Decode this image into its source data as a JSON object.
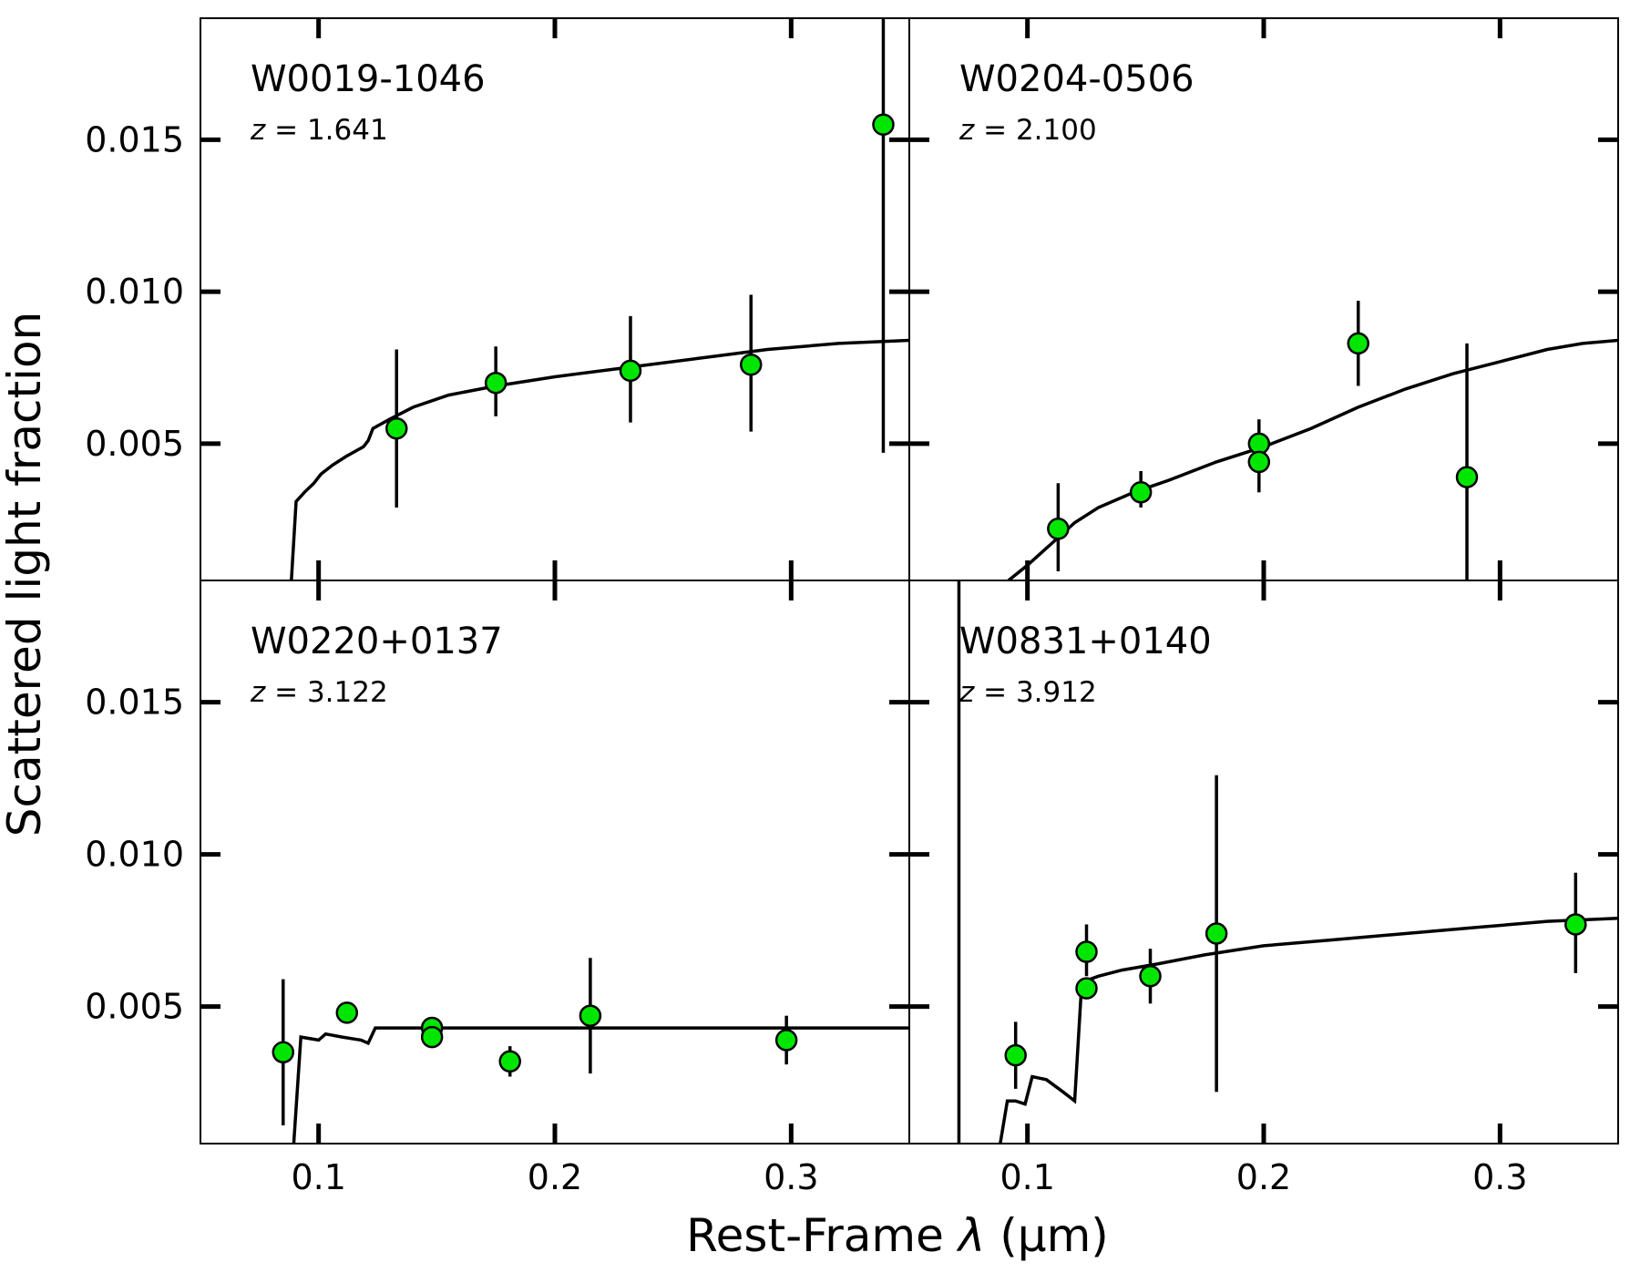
{
  "figure": {
    "xlabel_prefix": "Rest-Frame ",
    "xlabel_symbol": "λ",
    "xlabel_unit": " (μm)",
    "ylabel": "Scattered light fraction",
    "colors": {
      "marker_fill": "#00e600",
      "marker_edge": "#000000",
      "line": "#000000",
      "frame": "#000000"
    }
  },
  "chart_data": [
    {
      "type": "scatter",
      "name": "W0019-1046",
      "redshift_label": "z = 1.641",
      "xlim": [
        0.05,
        0.35
      ],
      "ylim": [
        0.0005,
        0.019
      ],
      "xticks": [
        0.1,
        0.2,
        0.3
      ],
      "yticks": [
        0.005,
        0.01,
        0.015
      ],
      "points": [
        {
          "x": 0.133,
          "y": 0.0055,
          "yerr_low": 0.0029,
          "yerr_high": 0.0081
        },
        {
          "x": 0.175,
          "y": 0.007,
          "yerr_low": 0.0059,
          "yerr_high": 0.0082
        },
        {
          "x": 0.232,
          "y": 0.0074,
          "yerr_low": 0.0057,
          "yerr_high": 0.0092
        },
        {
          "x": 0.283,
          "y": 0.0076,
          "yerr_low": 0.0054,
          "yerr_high": 0.0099
        },
        {
          "x": 0.339,
          "y": 0.0155,
          "yerr_low": 0.0047,
          "yerr_high": 0.0192
        }
      ],
      "model": [
        [
          0.0885,
          0.0005
        ],
        [
          0.0905,
          0.0031
        ],
        [
          0.094,
          0.0034
        ],
        [
          0.098,
          0.0037
        ],
        [
          0.101,
          0.004
        ],
        [
          0.106,
          0.0043
        ],
        [
          0.112,
          0.0046
        ],
        [
          0.119,
          0.0049
        ],
        [
          0.121,
          0.0051
        ],
        [
          0.123,
          0.0055
        ],
        [
          0.13,
          0.0058
        ],
        [
          0.14,
          0.0062
        ],
        [
          0.155,
          0.0066
        ],
        [
          0.175,
          0.0069
        ],
        [
          0.2,
          0.0072
        ],
        [
          0.23,
          0.0075
        ],
        [
          0.26,
          0.0078
        ],
        [
          0.29,
          0.0081
        ],
        [
          0.32,
          0.0083
        ],
        [
          0.35,
          0.0084
        ]
      ]
    },
    {
      "type": "scatter",
      "name": "W0204-0506",
      "redshift_label": "z = 2.100",
      "xlim": [
        0.05,
        0.35
      ],
      "ylim": [
        0.0005,
        0.019
      ],
      "xticks": [
        0.1,
        0.2,
        0.3
      ],
      "yticks": [
        0.005,
        0.01,
        0.015
      ],
      "points": [
        {
          "x": 0.113,
          "y": 0.0022,
          "yerr_low": 0.0008,
          "yerr_high": 0.0037
        },
        {
          "x": 0.148,
          "y": 0.0034,
          "yerr_low": 0.0029,
          "yerr_high": 0.0041
        },
        {
          "x": 0.198,
          "y": 0.005,
          "yerr_low": 0.0043,
          "yerr_high": 0.0058
        },
        {
          "x": 0.198,
          "y": 0.0044,
          "yerr_low": 0.0034,
          "yerr_high": 0.0052
        },
        {
          "x": 0.24,
          "y": 0.0083,
          "yerr_low": 0.0069,
          "yerr_high": 0.0097
        },
        {
          "x": 0.286,
          "y": 0.0039,
          "yerr_low": 0.0005,
          "yerr_high": 0.0083
        }
      ],
      "model": [
        [
          0.092,
          0.0005
        ],
        [
          0.1,
          0.001
        ],
        [
          0.11,
          0.0017
        ],
        [
          0.12,
          0.0024
        ],
        [
          0.13,
          0.0029
        ],
        [
          0.145,
          0.0034
        ],
        [
          0.16,
          0.0038
        ],
        [
          0.18,
          0.0044
        ],
        [
          0.2,
          0.0049
        ],
        [
          0.22,
          0.0055
        ],
        [
          0.24,
          0.0062
        ],
        [
          0.26,
          0.0068
        ],
        [
          0.28,
          0.0073
        ],
        [
          0.3,
          0.0077
        ],
        [
          0.32,
          0.0081
        ],
        [
          0.335,
          0.0083
        ],
        [
          0.35,
          0.0084
        ]
      ]
    },
    {
      "type": "scatter",
      "name": "W0220+0137",
      "redshift_label": "z = 3.122",
      "xlim": [
        0.05,
        0.35
      ],
      "ylim": [
        0.0005,
        0.019
      ],
      "xticks": [
        0.1,
        0.2,
        0.3
      ],
      "yticks": [
        0.005,
        0.01,
        0.015
      ],
      "points": [
        {
          "x": 0.085,
          "y": 0.0035,
          "yerr_low": 0.0011,
          "yerr_high": 0.0059
        },
        {
          "x": 0.112,
          "y": 0.0048,
          "yerr_low": 0.0048,
          "yerr_high": 0.0048
        },
        {
          "x": 0.148,
          "y": 0.0043,
          "yerr_low": 0.004,
          "yerr_high": 0.0046
        },
        {
          "x": 0.148,
          "y": 0.004,
          "yerr_low": 0.0037,
          "yerr_high": 0.0043
        },
        {
          "x": 0.181,
          "y": 0.0032,
          "yerr_low": 0.0027,
          "yerr_high": 0.0037
        },
        {
          "x": 0.215,
          "y": 0.0047,
          "yerr_low": 0.0028,
          "yerr_high": 0.0066
        },
        {
          "x": 0.298,
          "y": 0.0039,
          "yerr_low": 0.0031,
          "yerr_high": 0.0047
        }
      ],
      "model": [
        [
          0.0895,
          0.0005
        ],
        [
          0.0925,
          0.004
        ],
        [
          0.1,
          0.0039
        ],
        [
          0.103,
          0.0041
        ],
        [
          0.11,
          0.004
        ],
        [
          0.118,
          0.0039
        ],
        [
          0.121,
          0.0038
        ],
        [
          0.124,
          0.0043
        ],
        [
          0.2,
          0.0043
        ],
        [
          0.35,
          0.0043
        ]
      ]
    },
    {
      "type": "scatter",
      "name": "W0831+0140",
      "redshift_label": "z = 3.912",
      "xlim": [
        0.05,
        0.35
      ],
      "ylim": [
        0.0005,
        0.019
      ],
      "xticks": [
        0.1,
        0.2,
        0.3
      ],
      "yticks": [
        0.005,
        0.01,
        0.015
      ],
      "points": [
        {
          "x": 0.071,
          "y": 0.02,
          "yerr_low": 0.0005,
          "yerr_high": 0.019
        },
        {
          "x": 0.095,
          "y": 0.0034,
          "yerr_low": 0.0023,
          "yerr_high": 0.0045
        },
        {
          "x": 0.125,
          "y": 0.0068,
          "yerr_low": 0.006,
          "yerr_high": 0.0077
        },
        {
          "x": 0.125,
          "y": 0.0056,
          "yerr_low": 0.0053,
          "yerr_high": 0.0059
        },
        {
          "x": 0.152,
          "y": 0.006,
          "yerr_low": 0.0051,
          "yerr_high": 0.0069
        },
        {
          "x": 0.18,
          "y": 0.0074,
          "yerr_low": 0.0022,
          "yerr_high": 0.0126
        },
        {
          "x": 0.332,
          "y": 0.0077,
          "yerr_low": 0.0061,
          "yerr_high": 0.0094
        }
      ],
      "model": [
        [
          0.0885,
          0.0005
        ],
        [
          0.0915,
          0.0019
        ],
        [
          0.095,
          0.0019
        ],
        [
          0.099,
          0.0018
        ],
        [
          0.102,
          0.0027
        ],
        [
          0.108,
          0.0026
        ],
        [
          0.115,
          0.0022
        ],
        [
          0.12,
          0.0019
        ],
        [
          0.123,
          0.0058
        ],
        [
          0.13,
          0.006
        ],
        [
          0.14,
          0.0062
        ],
        [
          0.155,
          0.0064
        ],
        [
          0.175,
          0.0067
        ],
        [
          0.2,
          0.007
        ],
        [
          0.23,
          0.0072
        ],
        [
          0.26,
          0.0074
        ],
        [
          0.29,
          0.0076
        ],
        [
          0.32,
          0.0078
        ],
        [
          0.35,
          0.0079
        ]
      ]
    }
  ]
}
